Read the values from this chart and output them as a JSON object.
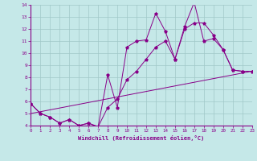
{
  "xlabel": "Windchill (Refroidissement éolien,°C)",
  "bg_color": "#c5e8e8",
  "line_color": "#880088",
  "grid_color": "#a0c8c8",
  "xmin": 0,
  "xmax": 23,
  "ymin": 4,
  "ymax": 14,
  "line1_x": [
    0,
    1,
    2,
    3,
    4,
    5,
    6,
    7,
    8,
    9,
    10,
    11,
    12,
    13,
    14,
    15,
    16,
    17,
    18,
    19,
    20,
    21,
    22,
    23
  ],
  "line1_y": [
    5.8,
    5.0,
    4.7,
    4.2,
    4.5,
    4.0,
    4.2,
    3.9,
    8.2,
    5.5,
    10.5,
    11.0,
    11.1,
    13.3,
    11.8,
    9.5,
    12.2,
    14.2,
    11.0,
    11.2,
    10.3,
    8.6,
    8.5,
    8.5
  ],
  "line2_x": [
    0,
    1,
    2,
    3,
    4,
    5,
    6,
    7,
    8,
    9,
    10,
    11,
    12,
    13,
    14,
    15,
    16,
    17,
    18,
    19,
    20,
    21,
    22,
    23
  ],
  "line2_y": [
    5.8,
    5.0,
    4.7,
    4.2,
    4.5,
    4.0,
    4.2,
    3.9,
    5.5,
    6.2,
    7.8,
    8.5,
    9.5,
    10.5,
    11.0,
    9.5,
    12.0,
    12.5,
    12.5,
    11.5,
    10.3,
    8.6,
    8.5,
    8.5
  ],
  "line3_x": [
    0,
    23
  ],
  "line3_y": [
    5.0,
    8.5
  ]
}
